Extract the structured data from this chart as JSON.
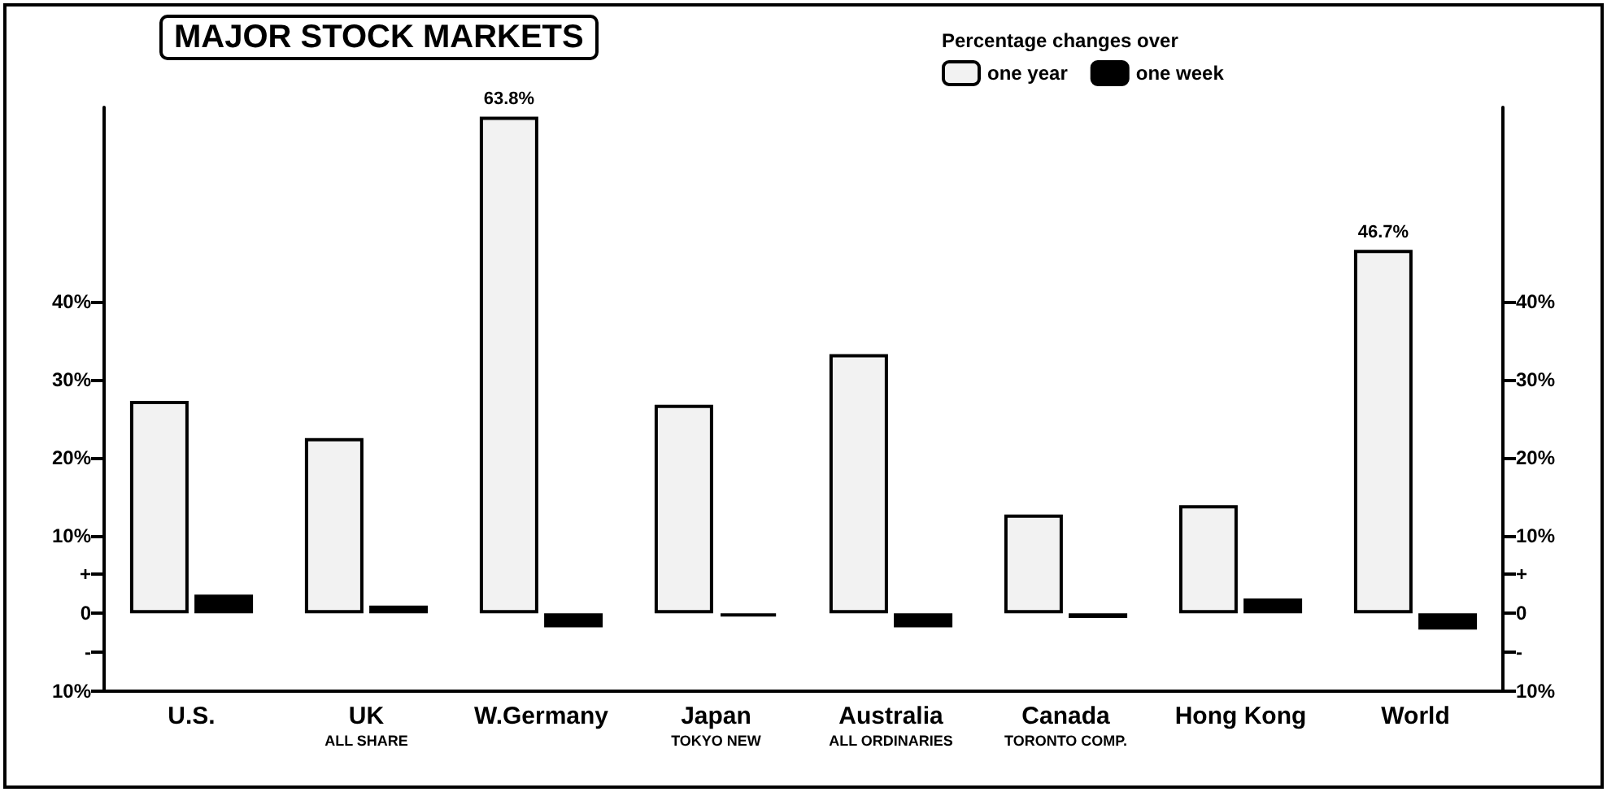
{
  "chart_data": {
    "type": "bar",
    "title": "MAJOR STOCK MARKETS",
    "legend_title": "Percentage changes over",
    "categories": [
      "U.S.",
      "UK\nALL SHARE",
      "W.Germany",
      "Japan\nTOKYO NEW",
      "Australia\nALL ORDINARIES",
      "Canada\nTORONTO COMP.",
      "Hong Kong",
      "World"
    ],
    "series": [
      {
        "name": "one year",
        "color": "#f2f2f2",
        "values": [
          27.3,
          22.5,
          63.8,
          26.8,
          33.3,
          12.7,
          13.9,
          46.7
        ],
        "value_labels": [
          null,
          null,
          "63.8%",
          null,
          null,
          null,
          null,
          "46.7%"
        ]
      },
      {
        "name": "one week",
        "color": "#000000",
        "values": [
          2.4,
          1.0,
          -1.8,
          -0.4,
          -1.8,
          -0.6,
          1.9,
          -2.1
        ]
      }
    ],
    "ylim": [
      -10,
      65
    ],
    "yticks": [
      {
        "value": -10,
        "label": "10%"
      },
      {
        "value": -5,
        "label": "-"
      },
      {
        "value": 0,
        "label": "0"
      },
      {
        "value": 5,
        "label": "+"
      },
      {
        "value": 10,
        "label": "10%"
      },
      {
        "value": 20,
        "label": "20%"
      },
      {
        "value": 30,
        "label": "30%"
      },
      {
        "value": 40,
        "label": "40%"
      }
    ],
    "y2lim": [
      -10,
      65
    ],
    "y2ticks": [
      {
        "value": -10,
        "label": "10%"
      },
      {
        "value": -5,
        "label": "-"
      },
      {
        "value": 0,
        "label": "0"
      },
      {
        "value": 5,
        "label": "+"
      },
      {
        "value": 10,
        "label": "10%"
      },
      {
        "value": 20,
        "label": "20%"
      },
      {
        "value": 30,
        "label": "30%"
      },
      {
        "value": 40,
        "label": "40%"
      }
    ],
    "grid": false,
    "legend": "top"
  }
}
